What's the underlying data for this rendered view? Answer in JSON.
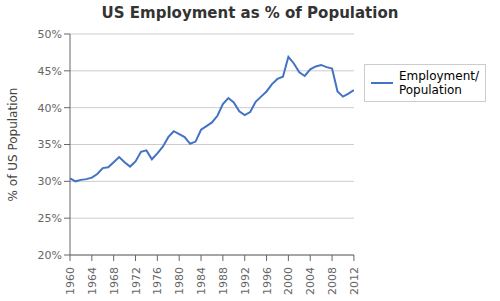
{
  "chart_data": {
    "type": "line",
    "title": "US Employment  as % of Population",
    "y_label": "% of US Population",
    "x": [
      1960,
      1961,
      1962,
      1963,
      1964,
      1965,
      1966,
      1967,
      1968,
      1969,
      1970,
      1971,
      1972,
      1973,
      1974,
      1975,
      1976,
      1977,
      1978,
      1979,
      1980,
      1981,
      1982,
      1983,
      1984,
      1985,
      1986,
      1987,
      1988,
      1989,
      1990,
      1991,
      1992,
      1993,
      1994,
      1995,
      1996,
      1997,
      1998,
      1999,
      2000,
      2001,
      2002,
      2003,
      2004,
      2005,
      2006,
      2007,
      2008,
      2009,
      2010,
      2011,
      2012
    ],
    "series": [
      {
        "name": "Employment/\nPopulation",
        "color": "#4472C4",
        "values": [
          30.4,
          30.0,
          30.2,
          30.3,
          30.5,
          31.0,
          31.8,
          31.9,
          32.6,
          33.3,
          32.6,
          32.0,
          32.7,
          34.0,
          34.2,
          33.0,
          33.8,
          34.7,
          36.0,
          36.8,
          36.4,
          36.0,
          35.1,
          35.4,
          37.0,
          37.5,
          38.0,
          38.9,
          40.5,
          41.3,
          40.7,
          39.5,
          39.0,
          39.4,
          40.8,
          41.5,
          42.2,
          43.2,
          43.9,
          44.2,
          46.9,
          46.0,
          44.8,
          44.3,
          45.2,
          45.6,
          45.8,
          45.5,
          45.3,
          42.2,
          41.5,
          41.9,
          42.4
        ]
      }
    ],
    "xlim": [
      1960,
      2012
    ],
    "xticks": [
      1960,
      1964,
      1968,
      1972,
      1976,
      1980,
      1984,
      1988,
      1992,
      1996,
      2000,
      2004,
      2008,
      2012
    ],
    "ylim": [
      20,
      50
    ],
    "yticks": [
      {
        "value": 20,
        "label": "20%"
      },
      {
        "value": 25,
        "label": "25%"
      },
      {
        "value": 30,
        "label": "30%"
      },
      {
        "value": 35,
        "label": "35%"
      },
      {
        "value": 40,
        "label": "40%"
      },
      {
        "value": 45,
        "label": "45%"
      },
      {
        "value": 50,
        "label": "50%"
      }
    ],
    "grid": true,
    "legend": "right"
  }
}
